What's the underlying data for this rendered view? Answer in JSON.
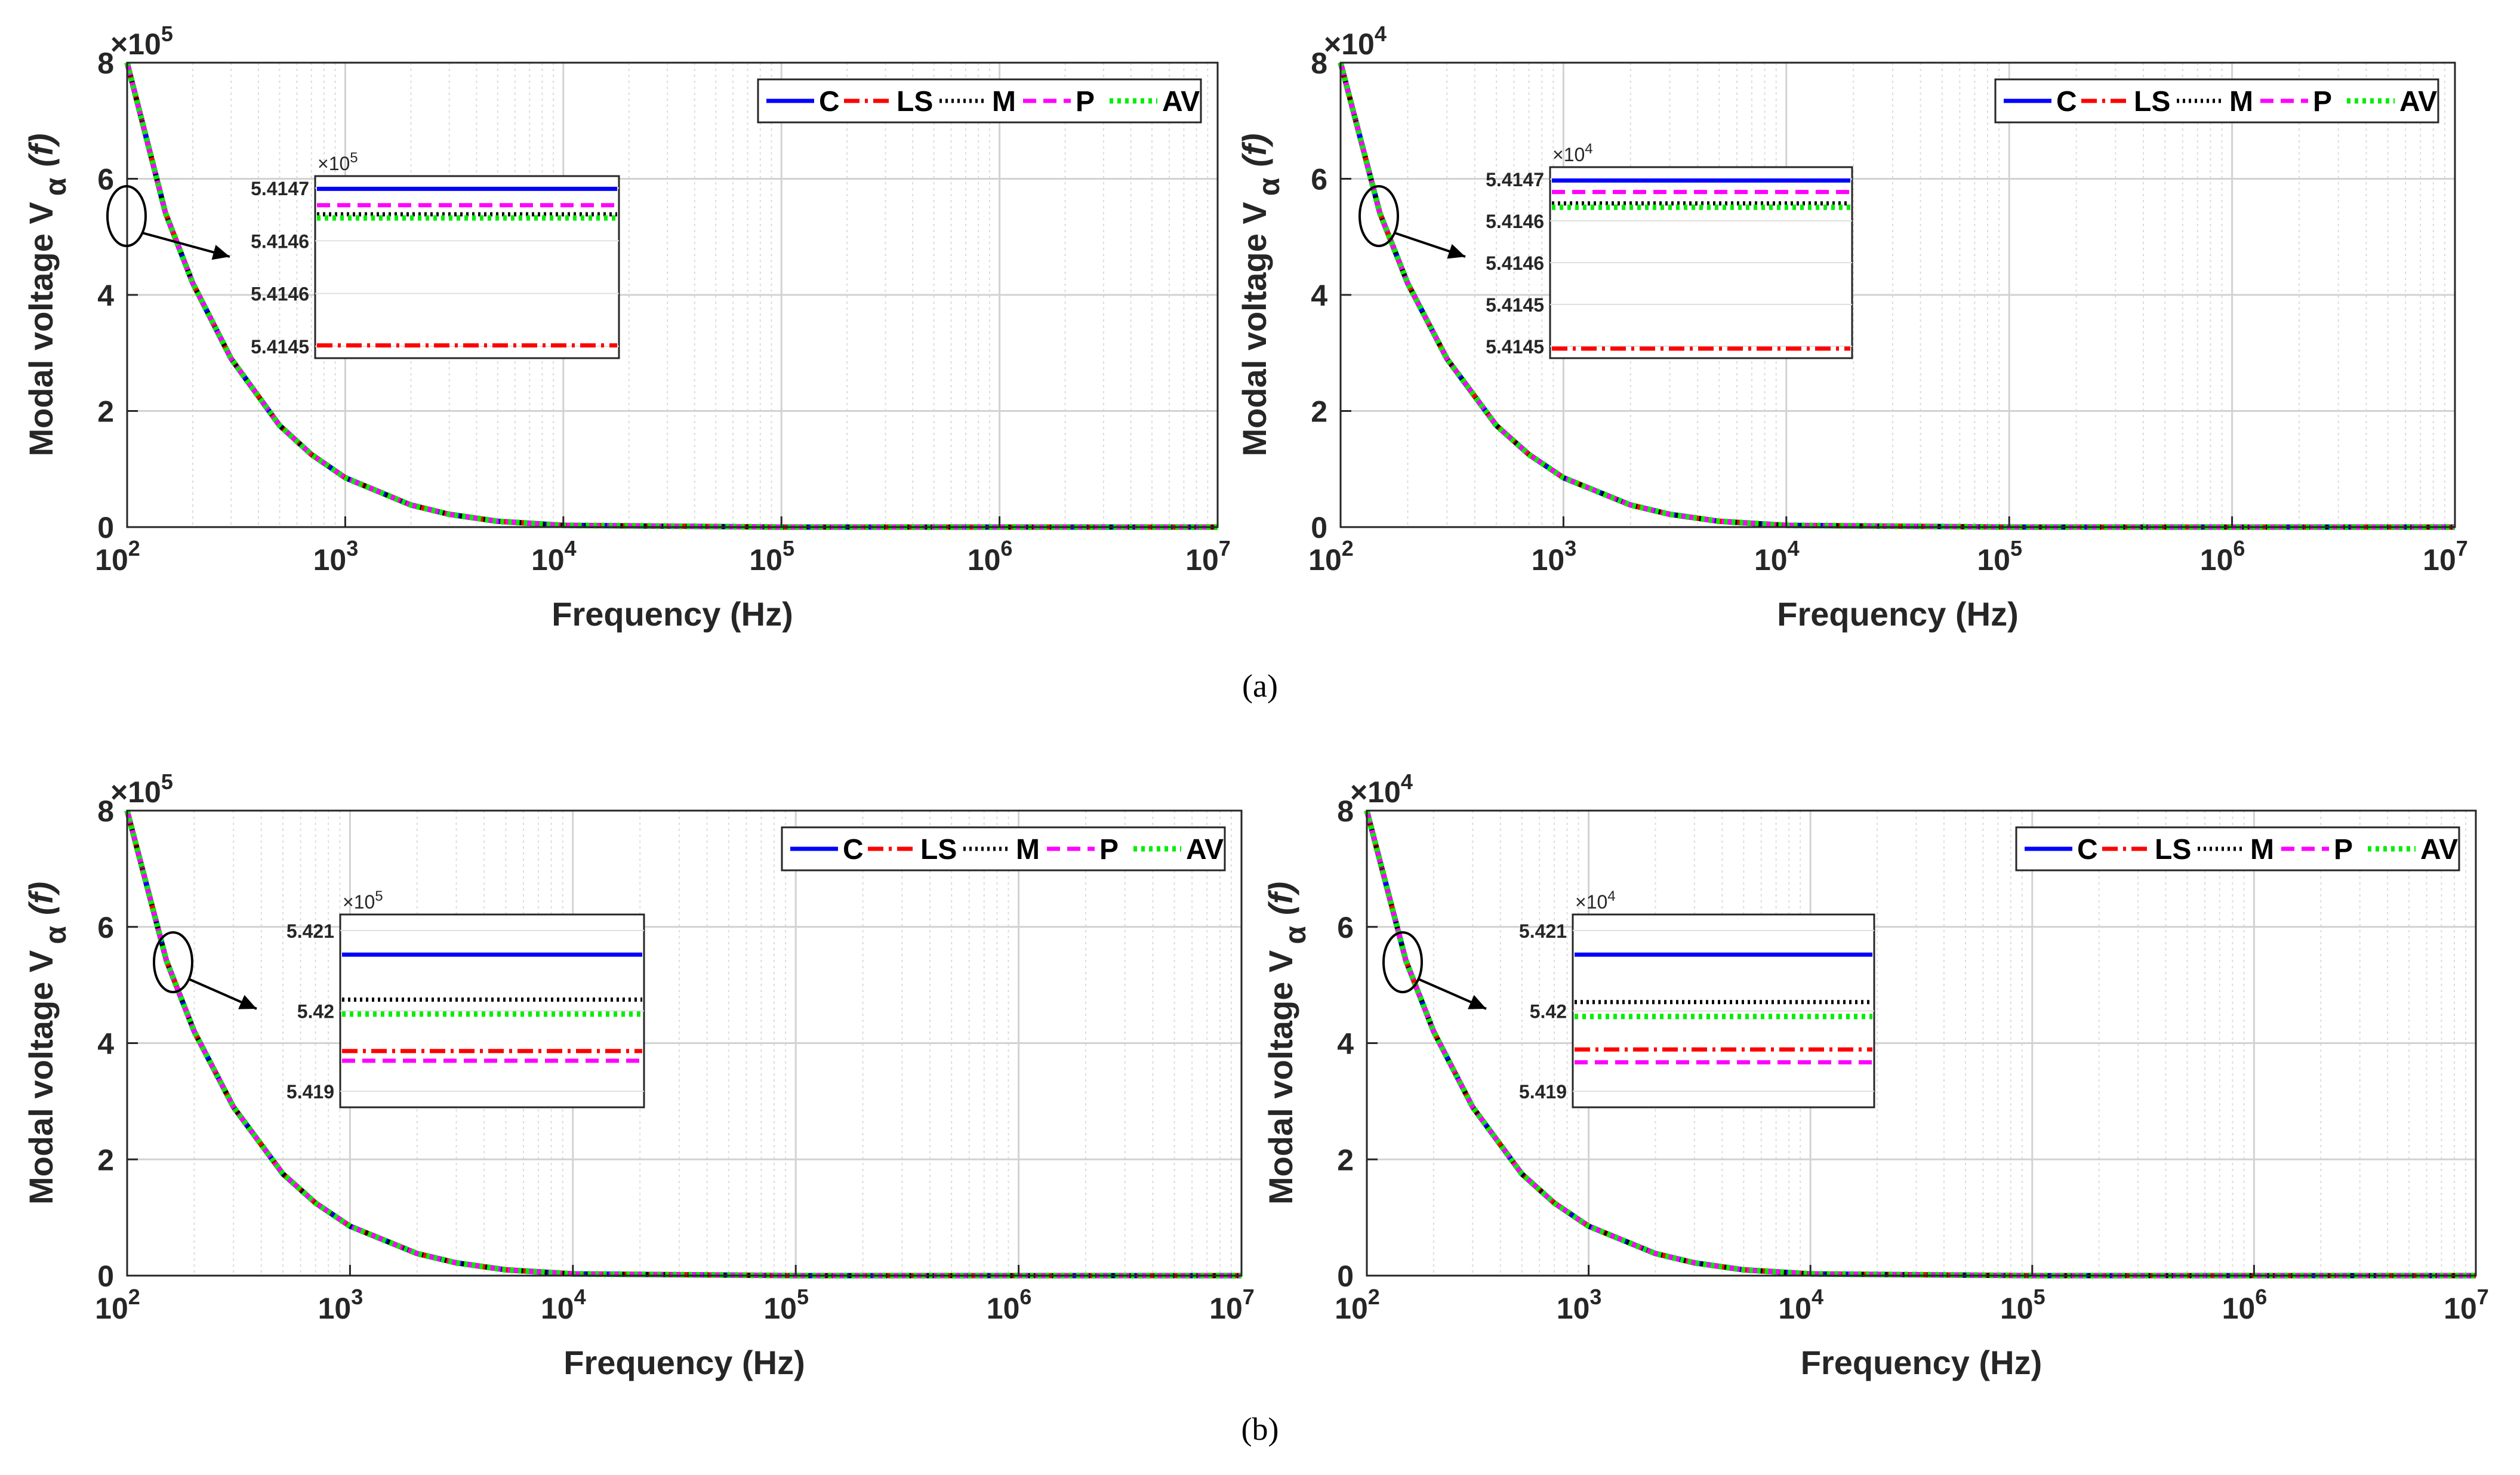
{
  "figure": {
    "captions": [
      "(a)",
      "(b)"
    ]
  },
  "chart_data": [
    {
      "type": "line",
      "panel": "(a) left",
      "xlabel": "Frequency (Hz)",
      "ylabel": "Modal voltage V",
      "ylabel_sub": "α",
      "ylabel_arg": "(f)",
      "xscale": "log",
      "xlim": [
        100,
        10000000
      ],
      "ylim": [
        0,
        8
      ],
      "xticks": [
        "10",
        "10",
        "10",
        "10",
        "10",
        "10"
      ],
      "xtick_exps": [
        "2",
        "3",
        "4",
        "5",
        "6",
        "7"
      ],
      "yticks": [
        "0",
        "2",
        "4",
        "6",
        "8"
      ],
      "y_multiplier_base": "×10",
      "y_multiplier_exp": "5",
      "legend_position": "top-right",
      "series": [
        {
          "name": "C",
          "color": "#0000ff",
          "dash": "solid"
        },
        {
          "name": "LS",
          "color": "#ff0000",
          "dash": "dashdot"
        },
        {
          "name": "M",
          "color": "#000000",
          "dash": "dotted"
        },
        {
          "name": "P",
          "color": "#ff00ff",
          "dash": "dashed"
        },
        {
          "name": "AV",
          "color": "#00ee00",
          "dash": "dotted-thick"
        }
      ],
      "curve": {
        "x": [
          100,
          150,
          200,
          300,
          500,
          700,
          1000,
          2000,
          3000,
          5000,
          10000,
          100000,
          1000000,
          10000000
        ],
        "y": [
          8.0,
          5.41,
          4.2,
          2.9,
          1.75,
          1.25,
          0.85,
          0.38,
          0.22,
          0.1,
          0.03,
          0.0,
          0.0,
          0.0
        ]
      },
      "inset": {
        "multiplier_base": "×10",
        "multiplier_exp": "5",
        "yticks": [
          "5.4147",
          "5.4146",
          "5.4146",
          "5.4145"
        ],
        "ylim": [
          0,
          1
        ],
        "levels": {
          "C": 0.93,
          "LS": 0.07,
          "M": 0.79,
          "P": 0.84,
          "AV": 0.77
        }
      }
    },
    {
      "type": "line",
      "panel": "(a) right",
      "xlabel": "Frequency (Hz)",
      "ylabel": "Modal voltage V",
      "ylabel_sub": "α",
      "ylabel_arg": "(f)",
      "xscale": "log",
      "xlim": [
        100,
        10000000
      ],
      "ylim": [
        0,
        8
      ],
      "xticks": [
        "10",
        "10",
        "10",
        "10",
        "10",
        "10"
      ],
      "xtick_exps": [
        "2",
        "3",
        "4",
        "5",
        "6",
        "7"
      ],
      "yticks": [
        "0",
        "2",
        "4",
        "6",
        "8"
      ],
      "y_multiplier_base": "×10",
      "y_multiplier_exp": "4",
      "legend_position": "top-right",
      "series": [
        {
          "name": "C",
          "color": "#0000ff",
          "dash": "solid"
        },
        {
          "name": "LS",
          "color": "#ff0000",
          "dash": "dashdot"
        },
        {
          "name": "M",
          "color": "#000000",
          "dash": "dotted"
        },
        {
          "name": "P",
          "color": "#ff00ff",
          "dash": "dashed"
        },
        {
          "name": "AV",
          "color": "#00ee00",
          "dash": "dotted-thick"
        }
      ],
      "curve": {
        "x": [
          100,
          150,
          200,
          300,
          500,
          700,
          1000,
          2000,
          3000,
          5000,
          10000,
          100000,
          1000000,
          10000000
        ],
        "y": [
          8.0,
          5.41,
          4.2,
          2.9,
          1.75,
          1.25,
          0.85,
          0.38,
          0.22,
          0.1,
          0.03,
          0.0,
          0.0,
          0.0
        ]
      },
      "inset": {
        "multiplier_base": "×10",
        "multiplier_exp": "4",
        "yticks": [
          "5.4147",
          "5.4146",
          "5.4146",
          "5.4145",
          "5.4145"
        ],
        "ylim": [
          0,
          1
        ],
        "levels": {
          "C": 0.93,
          "LS": 0.05,
          "M": 0.81,
          "P": 0.87,
          "AV": 0.79
        }
      }
    },
    {
      "type": "line",
      "panel": "(b) left",
      "xlabel": "Frequency (Hz)",
      "ylabel": "Modal voltage V",
      "ylabel_sub": "α",
      "ylabel_arg": "(f)",
      "xscale": "log",
      "xlim": [
        100,
        10000000
      ],
      "ylim": [
        0,
        8
      ],
      "xticks": [
        "10",
        "10",
        "10",
        "10",
        "10",
        "10"
      ],
      "xtick_exps": [
        "2",
        "3",
        "4",
        "5",
        "6",
        "7"
      ],
      "yticks": [
        "0",
        "2",
        "4",
        "6",
        "8"
      ],
      "y_multiplier_base": "×10",
      "y_multiplier_exp": "5",
      "legend_position": "top-right",
      "series": [
        {
          "name": "C",
          "color": "#0000ff",
          "dash": "solid"
        },
        {
          "name": "LS",
          "color": "#ff0000",
          "dash": "dashdot"
        },
        {
          "name": "M",
          "color": "#000000",
          "dash": "dotted"
        },
        {
          "name": "P",
          "color": "#ff00ff",
          "dash": "dashed"
        },
        {
          "name": "AV",
          "color": "#00ee00",
          "dash": "dotted-thick"
        }
      ],
      "curve": {
        "x": [
          100,
          150,
          200,
          300,
          500,
          700,
          1000,
          2000,
          3000,
          5000,
          10000,
          100000,
          1000000,
          10000000
        ],
        "y": [
          8.0,
          5.42,
          4.2,
          2.9,
          1.75,
          1.25,
          0.85,
          0.38,
          0.22,
          0.1,
          0.03,
          0.0,
          0.0,
          0.0
        ]
      },
      "inset": {
        "multiplier_base": "×10",
        "multiplier_exp": "5",
        "yticks": [
          "5.421",
          "5.42",
          "5.419"
        ],
        "ylim": [
          5.4188,
          5.4212
        ],
        "levels": {
          "C": 5.4207,
          "LS": 5.4195,
          "M": 5.42014,
          "P": 5.41938,
          "AV": 5.41996
        }
      }
    },
    {
      "type": "line",
      "panel": "(b) right",
      "xlabel": "Frequency (Hz)",
      "ylabel": "Modal voltage V",
      "ylabel_sub": "α",
      "ylabel_arg": "(f)",
      "xscale": "log",
      "xlim": [
        100,
        10000000
      ],
      "ylim": [
        0,
        8
      ],
      "xticks": [
        "10",
        "10",
        "10",
        "10",
        "10",
        "10"
      ],
      "xtick_exps": [
        "2",
        "3",
        "4",
        "5",
        "6",
        "7"
      ],
      "yticks": [
        "0",
        "2",
        "4",
        "6",
        "8"
      ],
      "y_multiplier_base": "×10",
      "y_multiplier_exp": "4",
      "legend_position": "top-right",
      "series": [
        {
          "name": "C",
          "color": "#0000ff",
          "dash": "solid"
        },
        {
          "name": "LS",
          "color": "#ff0000",
          "dash": "dashdot"
        },
        {
          "name": "M",
          "color": "#000000",
          "dash": "dotted"
        },
        {
          "name": "P",
          "color": "#ff00ff",
          "dash": "dashed"
        },
        {
          "name": "AV",
          "color": "#00ee00",
          "dash": "dotted-thick"
        }
      ],
      "curve": {
        "x": [
          100,
          150,
          200,
          300,
          500,
          700,
          1000,
          2000,
          3000,
          5000,
          10000,
          100000,
          1000000,
          10000000
        ],
        "y": [
          8.0,
          5.42,
          4.2,
          2.9,
          1.75,
          1.25,
          0.85,
          0.38,
          0.22,
          0.1,
          0.03,
          0.0,
          0.0,
          0.0
        ]
      },
      "inset": {
        "multiplier_base": "×10",
        "multiplier_exp": "4",
        "yticks": [
          "5.421",
          "5.42",
          "5.419"
        ],
        "ylim": [
          5.4188,
          5.4212
        ],
        "levels": {
          "C": 5.4207,
          "LS": 5.41952,
          "M": 5.42011,
          "P": 5.41936,
          "AV": 5.41993
        }
      }
    }
  ]
}
